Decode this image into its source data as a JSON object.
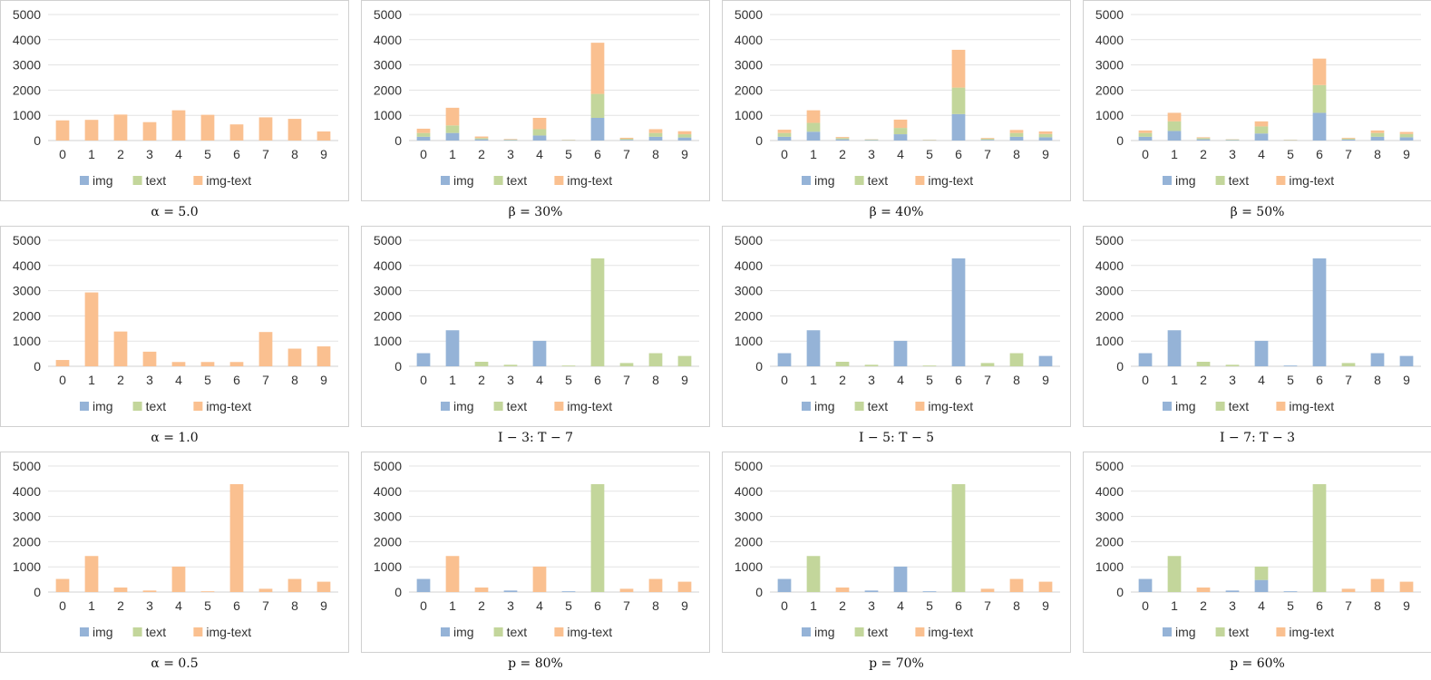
{
  "legend": [
    {
      "name": "img",
      "color": "#95b3d7"
    },
    {
      "name": "text",
      "color": "#c3d69b"
    },
    {
      "name": "img-text",
      "color": "#fac090"
    }
  ],
  "chart_data": [
    {
      "type": "bar",
      "stacked": true,
      "caption": "α = 5.0",
      "categories": [
        "0",
        "1",
        "2",
        "3",
        "4",
        "5",
        "6",
        "7",
        "8",
        "9"
      ],
      "ylim": [
        0,
        5000
      ],
      "yticks": [
        "0",
        "1000",
        "2000",
        "3000",
        "4000",
        "5000"
      ],
      "series": [
        {
          "name": "img",
          "values": [
            0,
            0,
            0,
            0,
            0,
            0,
            0,
            0,
            0,
            0
          ]
        },
        {
          "name": "text",
          "values": [
            0,
            0,
            0,
            0,
            0,
            0,
            0,
            0,
            0,
            0
          ]
        },
        {
          "name": "img-text",
          "values": [
            800,
            820,
            1030,
            730,
            1200,
            1020,
            640,
            920,
            860,
            360
          ]
        }
      ]
    },
    {
      "type": "bar",
      "stacked": true,
      "caption": "β = 30%",
      "categories": [
        "0",
        "1",
        "2",
        "3",
        "4",
        "5",
        "6",
        "7",
        "8",
        "9"
      ],
      "ylim": [
        0,
        5000
      ],
      "yticks": [
        "0",
        "1000",
        "2000",
        "3000",
        "4000",
        "5000"
      ],
      "series": [
        {
          "name": "img",
          "values": [
            150,
            300,
            50,
            20,
            200,
            10,
            900,
            30,
            150,
            120
          ]
        },
        {
          "name": "text",
          "values": [
            150,
            300,
            50,
            20,
            250,
            10,
            950,
            40,
            150,
            130
          ]
        },
        {
          "name": "img-text",
          "values": [
            170,
            700,
            60,
            20,
            450,
            10,
            2030,
            40,
            150,
            120
          ]
        }
      ]
    },
    {
      "type": "bar",
      "stacked": true,
      "caption": "β = 40%",
      "categories": [
        "0",
        "1",
        "2",
        "3",
        "4",
        "5",
        "6",
        "7",
        "8",
        "9"
      ],
      "ylim": [
        0,
        5000
      ],
      "yticks": [
        "0",
        "1000",
        "2000",
        "3000",
        "4000",
        "5000"
      ],
      "series": [
        {
          "name": "img",
          "values": [
            150,
            350,
            50,
            20,
            250,
            10,
            1050,
            30,
            150,
            130
          ]
        },
        {
          "name": "text",
          "values": [
            150,
            350,
            50,
            20,
            250,
            10,
            1050,
            40,
            150,
            130
          ]
        },
        {
          "name": "img-text",
          "values": [
            130,
            500,
            40,
            10,
            330,
            10,
            1500,
            30,
            120,
            100
          ]
        }
      ]
    },
    {
      "type": "bar",
      "stacked": true,
      "caption": "β = 50%",
      "categories": [
        "0",
        "1",
        "2",
        "3",
        "4",
        "5",
        "6",
        "7",
        "8",
        "9"
      ],
      "ylim": [
        0,
        5000
      ],
      "yticks": [
        "0",
        "1000",
        "2000",
        "3000",
        "4000",
        "5000"
      ],
      "series": [
        {
          "name": "img",
          "values": [
            150,
            380,
            50,
            20,
            280,
            10,
            1100,
            40,
            150,
            130
          ]
        },
        {
          "name": "text",
          "values": [
            150,
            380,
            50,
            20,
            280,
            10,
            1100,
            40,
            150,
            130
          ]
        },
        {
          "name": "img-text",
          "values": [
            100,
            340,
            30,
            10,
            200,
            10,
            1050,
            30,
            100,
            80
          ]
        }
      ]
    },
    {
      "type": "bar",
      "stacked": true,
      "caption": "α = 1.0",
      "categories": [
        "0",
        "1",
        "2",
        "3",
        "4",
        "5",
        "6",
        "7",
        "8",
        "9"
      ],
      "ylim": [
        0,
        5000
      ],
      "yticks": [
        "0",
        "1000",
        "2000",
        "3000",
        "4000",
        "5000"
      ],
      "series": [
        {
          "name": "img",
          "values": [
            0,
            0,
            0,
            0,
            0,
            0,
            0,
            0,
            0,
            0
          ]
        },
        {
          "name": "text",
          "values": [
            0,
            0,
            0,
            0,
            0,
            0,
            0,
            0,
            0,
            0
          ]
        },
        {
          "name": "img-text",
          "values": [
            250,
            2930,
            1380,
            580,
            170,
            170,
            170,
            1360,
            700,
            790
          ]
        }
      ]
    },
    {
      "type": "bar",
      "stacked": true,
      "caption": "I − 3: T − 7",
      "categories": [
        "0",
        "1",
        "2",
        "3",
        "4",
        "5",
        "6",
        "7",
        "8",
        "9"
      ],
      "ylim": [
        0,
        5000
      ],
      "yticks": [
        "0",
        "1000",
        "2000",
        "3000",
        "4000",
        "5000"
      ],
      "series": [
        {
          "name": "img",
          "values": [
            520,
            1430,
            0,
            0,
            1010,
            0,
            0,
            0,
            0,
            0
          ]
        },
        {
          "name": "text",
          "values": [
            0,
            0,
            180,
            60,
            0,
            30,
            4280,
            130,
            520,
            410
          ]
        },
        {
          "name": "img-text",
          "values": [
            0,
            0,
            0,
            0,
            0,
            0,
            0,
            0,
            0,
            0
          ]
        }
      ]
    },
    {
      "type": "bar",
      "stacked": true,
      "caption": "I − 5: T − 5",
      "categories": [
        "0",
        "1",
        "2",
        "3",
        "4",
        "5",
        "6",
        "7",
        "8",
        "9"
      ],
      "ylim": [
        0,
        5000
      ],
      "yticks": [
        "0",
        "1000",
        "2000",
        "3000",
        "4000",
        "5000"
      ],
      "series": [
        {
          "name": "img",
          "values": [
            520,
            1430,
            0,
            0,
            1010,
            0,
            4280,
            0,
            0,
            410
          ]
        },
        {
          "name": "text",
          "values": [
            0,
            0,
            180,
            60,
            0,
            30,
            0,
            130,
            520,
            0
          ]
        },
        {
          "name": "img-text",
          "values": [
            0,
            0,
            0,
            0,
            0,
            0,
            0,
            0,
            0,
            0
          ]
        }
      ]
    },
    {
      "type": "bar",
      "stacked": true,
      "caption": "I − 7: T − 3",
      "categories": [
        "0",
        "1",
        "2",
        "3",
        "4",
        "5",
        "6",
        "7",
        "8",
        "9"
      ],
      "ylim": [
        0,
        5000
      ],
      "yticks": [
        "0",
        "1000",
        "2000",
        "3000",
        "4000",
        "5000"
      ],
      "series": [
        {
          "name": "img",
          "values": [
            520,
            1430,
            0,
            0,
            1010,
            30,
            4280,
            0,
            520,
            410
          ]
        },
        {
          "name": "text",
          "values": [
            0,
            0,
            180,
            60,
            0,
            0,
            0,
            130,
            0,
            0
          ]
        },
        {
          "name": "img-text",
          "values": [
            0,
            0,
            0,
            0,
            0,
            0,
            0,
            0,
            0,
            0
          ]
        }
      ]
    },
    {
      "type": "bar",
      "stacked": true,
      "caption": "α = 0.5",
      "categories": [
        "0",
        "1",
        "2",
        "3",
        "4",
        "5",
        "6",
        "7",
        "8",
        "9"
      ],
      "ylim": [
        0,
        5000
      ],
      "yticks": [
        "0",
        "1000",
        "2000",
        "3000",
        "4000",
        "5000"
      ],
      "series": [
        {
          "name": "img",
          "values": [
            0,
            0,
            0,
            0,
            0,
            0,
            0,
            0,
            0,
            0
          ]
        },
        {
          "name": "text",
          "values": [
            0,
            0,
            0,
            0,
            0,
            0,
            0,
            0,
            0,
            0
          ]
        },
        {
          "name": "img-text",
          "values": [
            520,
            1430,
            180,
            60,
            1010,
            30,
            4280,
            130,
            520,
            410
          ]
        }
      ]
    },
    {
      "type": "bar",
      "stacked": true,
      "caption": "p = 80%",
      "categories": [
        "0",
        "1",
        "2",
        "3",
        "4",
        "5",
        "6",
        "7",
        "8",
        "9"
      ],
      "ylim": [
        0,
        5000
      ],
      "yticks": [
        "0",
        "1000",
        "2000",
        "3000",
        "4000",
        "5000"
      ],
      "series": [
        {
          "name": "img",
          "values": [
            520,
            0,
            0,
            60,
            0,
            30,
            0,
            0,
            0,
            0
          ]
        },
        {
          "name": "text",
          "values": [
            0,
            0,
            0,
            0,
            0,
            0,
            4280,
            0,
            0,
            0
          ]
        },
        {
          "name": "img-text",
          "values": [
            0,
            1430,
            180,
            0,
            1010,
            0,
            0,
            130,
            520,
            410
          ]
        }
      ]
    },
    {
      "type": "bar",
      "stacked": true,
      "caption": "p = 70%",
      "categories": [
        "0",
        "1",
        "2",
        "3",
        "4",
        "5",
        "6",
        "7",
        "8",
        "9"
      ],
      "ylim": [
        0,
        5000
      ],
      "yticks": [
        "0",
        "1000",
        "2000",
        "3000",
        "4000",
        "5000"
      ],
      "series": [
        {
          "name": "img",
          "values": [
            520,
            0,
            0,
            60,
            1010,
            30,
            0,
            0,
            0,
            0
          ]
        },
        {
          "name": "text",
          "values": [
            0,
            1430,
            0,
            0,
            0,
            0,
            4280,
            0,
            0,
            0
          ]
        },
        {
          "name": "img-text",
          "values": [
            0,
            0,
            180,
            0,
            0,
            0,
            0,
            130,
            520,
            410
          ]
        }
      ]
    },
    {
      "type": "bar",
      "stacked": true,
      "caption": "p = 60%",
      "categories": [
        "0",
        "1",
        "2",
        "3",
        "4",
        "5",
        "6",
        "7",
        "8",
        "9"
      ],
      "ylim": [
        0,
        5000
      ],
      "yticks": [
        "0",
        "1000",
        "2000",
        "3000",
        "4000",
        "5000"
      ],
      "series": [
        {
          "name": "img",
          "values": [
            520,
            0,
            0,
            60,
            480,
            30,
            0,
            0,
            0,
            0
          ]
        },
        {
          "name": "text",
          "values": [
            0,
            1430,
            0,
            0,
            530,
            0,
            4280,
            0,
            0,
            0
          ]
        },
        {
          "name": "img-text",
          "values": [
            0,
            0,
            180,
            0,
            0,
            0,
            0,
            130,
            520,
            410
          ]
        }
      ]
    }
  ]
}
